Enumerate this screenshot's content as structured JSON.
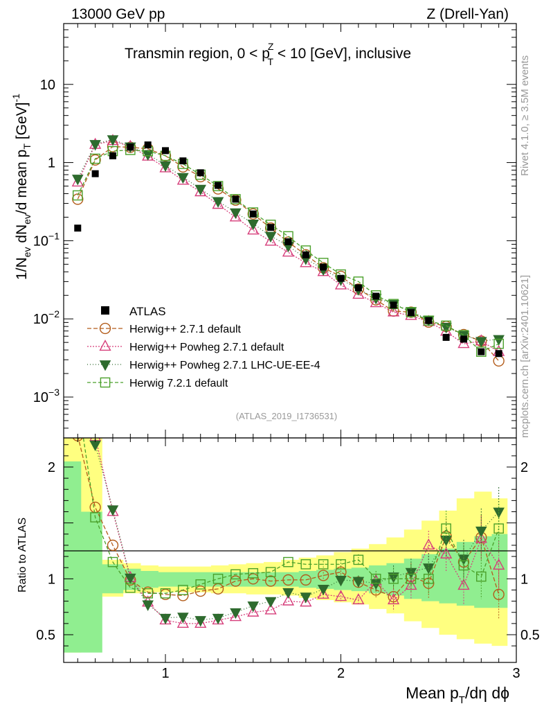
{
  "header": {
    "left": "13000 GeV pp",
    "right": "Z (Drell-Yan)"
  },
  "side_labels": {
    "rivet": "Rivet 4.1.0, ≥ 3.5M events",
    "mcplots": "mcplots.cern.ch [arXiv:2401.10621]"
  },
  "chart_data": {
    "type": "scatter",
    "title": "Transmin region, 0 < p_T^Z < 10 [GeV], inclusive",
    "title_parts": {
      "pre": "Transmin region, 0 < p",
      "sup": "Z",
      "sub": "T",
      "post": " < 10 [GeV], inclusive"
    },
    "analysis_id": "(ATLAS_2019_I1736531)",
    "xlabel": "Mean p_T/dη dϕ",
    "xlabel_parts": {
      "pre": "Mean p",
      "sub": "T",
      "post": "/dη dϕ"
    },
    "ylabel": "1/N_ev dN_ev/d mean p_T [GeV]^-1",
    "ylabel_parts": {
      "a": "1/N",
      "a_sub": "ev",
      "b": " dN",
      "b_sub": "ev",
      "c": "/d mean p",
      "c_sub": "T",
      "d": " [GeV]",
      "d_sup": "-1"
    },
    "ratio_ylabel": "Ratio to ATLAS",
    "xlim": [
      0.42,
      3.0
    ],
    "ylim": [
      0.0003,
      60
    ],
    "yscale": "log",
    "ratio_ylim": [
      0.34,
      2.3
    ],
    "x_ticks": [
      1,
      2,
      3
    ],
    "x_tick_labels": [
      "1",
      "2",
      "3"
    ],
    "y_tick_labels": [
      {
        "value": 10,
        "base": "10",
        "exp": ""
      },
      {
        "value": 1,
        "base": "1",
        "exp": ""
      },
      {
        "value": 0.1,
        "base": "10",
        "exp": "−1"
      },
      {
        "value": 0.01,
        "base": "10",
        "exp": "−2"
      },
      {
        "value": 0.001,
        "base": "10",
        "exp": "−3"
      }
    ],
    "ratio_ticks": [
      0.5,
      1,
      2
    ],
    "ratio_tick_labels": [
      "0.5",
      "1",
      "2"
    ],
    "x": [
      0.5,
      0.6,
      0.7,
      0.8,
      0.9,
      1.0,
      1.1,
      1.2,
      1.3,
      1.4,
      1.5,
      1.6,
      1.7,
      1.8,
      1.9,
      2.0,
      2.1,
      2.2,
      2.3,
      2.4,
      2.5,
      2.6,
      2.7,
      2.8,
      2.9
    ],
    "data": {
      "name": "ATLAS",
      "values": [
        0.145,
        0.72,
        1.22,
        1.58,
        1.68,
        1.42,
        1.05,
        0.74,
        0.51,
        0.34,
        0.22,
        0.148,
        0.097,
        0.066,
        0.046,
        0.033,
        0.025,
        0.0195,
        0.015,
        0.012,
        0.0095,
        0.0058,
        0.0055,
        0.0038,
        0.0036
      ]
    },
    "band_edges": [
      0.42,
      0.52,
      0.64,
      0.76,
      0.86,
      0.96,
      1.06,
      1.16,
      1.26,
      1.36,
      1.46,
      1.56,
      1.66,
      1.76,
      1.86,
      1.96,
      2.06,
      2.16,
      2.26,
      2.36,
      2.46,
      2.56,
      2.66,
      2.76,
      2.86,
      2.95
    ],
    "band_inner": {
      "lo": [
        0.34,
        0.34,
        0.87,
        0.9,
        0.92,
        0.93,
        0.93,
        0.93,
        0.93,
        0.93,
        0.93,
        0.93,
        0.93,
        0.92,
        0.91,
        0.9,
        0.89,
        0.87,
        0.85,
        0.82,
        0.8,
        0.78,
        0.76,
        0.74,
        0.74
      ],
      "hi": [
        2.05,
        1.6,
        1.13,
        1.09,
        1.07,
        1.06,
        1.06,
        1.06,
        1.06,
        1.06,
        1.06,
        1.06,
        1.06,
        1.07,
        1.08,
        1.09,
        1.1,
        1.12,
        1.14,
        1.18,
        1.22,
        1.27,
        1.33,
        1.38,
        1.4
      ]
    },
    "band_outer": {
      "lo": [
        0.34,
        0.67,
        0.84,
        0.87,
        0.88,
        0.88,
        0.88,
        0.88,
        0.87,
        0.87,
        0.86,
        0.86,
        0.85,
        0.83,
        0.81,
        0.79,
        0.77,
        0.73,
        0.69,
        0.62,
        0.56,
        0.5,
        0.46,
        0.42,
        0.4
      ],
      "hi": [
        2.3,
        2.3,
        1.17,
        1.14,
        1.12,
        1.11,
        1.11,
        1.11,
        1.12,
        1.13,
        1.14,
        1.15,
        1.17,
        1.19,
        1.21,
        1.24,
        1.27,
        1.31,
        1.37,
        1.44,
        1.52,
        1.61,
        1.72,
        1.78,
        1.72
      ]
    },
    "series": [
      {
        "name": "Herwig++ 2.7.1 default",
        "color": "#b35c1a",
        "marker": "circle",
        "dash": "6,3",
        "values": [
          0.34,
          1.08,
          1.6,
          1.57,
          1.5,
          1.22,
          0.88,
          0.66,
          0.46,
          0.33,
          0.22,
          0.145,
          0.096,
          0.066,
          0.045,
          0.035,
          0.024,
          0.0175,
          0.0126,
          0.0122,
          0.0091,
          0.008,
          0.0063,
          0.0052,
          0.0029
        ],
        "ratio": [
          2.28,
          1.64,
          1.3,
          0.99,
          0.88,
          0.86,
          0.85,
          0.89,
          0.91,
          0.98,
          1.0,
          0.98,
          0.99,
          0.99,
          1.03,
          1.06,
          0.97,
          0.9,
          0.84,
          1.02,
          0.96,
          1.38,
          1.15,
          1.37,
          0.86
        ],
        "ratio_err": [
          0,
          0,
          0,
          0,
          0,
          0,
          0,
          0,
          0,
          0,
          0,
          0,
          0,
          0,
          0.03,
          0.04,
          0.05,
          0.07,
          0.1,
          0.12,
          0.13,
          0.16,
          0.17,
          0.2,
          0.22
        ]
      },
      {
        "name": "Herwig++ Powheg 2.7.1 default",
        "color": "#d63d7a",
        "marker": "triangle-up",
        "dash": "2,2",
        "values": [
          0.56,
          1.7,
          1.9,
          1.6,
          1.2,
          0.85,
          0.59,
          0.42,
          0.29,
          0.2,
          0.136,
          0.098,
          0.071,
          0.052,
          0.04,
          0.027,
          0.0205,
          0.016,
          0.0122,
          0.011,
          0.0092,
          0.0069,
          0.0048,
          0.0052,
          0.0038
        ],
        "ratio": [
          3.6,
          2.27,
          1.6,
          1.01,
          0.79,
          0.63,
          0.6,
          0.6,
          0.63,
          0.66,
          0.7,
          0.72,
          0.8,
          0.79,
          0.86,
          0.84,
          0.81,
          0.98,
          0.81,
          0.94,
          1.3,
          1.22,
          0.94,
          1.36,
          1.12
        ],
        "ratio_err": [
          0,
          0,
          0,
          0,
          0,
          0,
          0,
          0,
          0,
          0,
          0,
          0,
          0,
          0,
          0.03,
          0.04,
          0.05,
          0.07,
          0.1,
          0.12,
          0.13,
          0.16,
          0.17,
          0.2,
          0.22
        ]
      },
      {
        "name": "Herwig++ Powheg 2.7.1 LHC-UE-EE-4",
        "color": "#2e6b2e",
        "marker": "triangle-down",
        "dash": "1,3",
        "values": [
          0.62,
          1.72,
          1.98,
          1.6,
          1.28,
          0.92,
          0.65,
          0.46,
          0.32,
          0.23,
          0.165,
          0.115,
          0.086,
          0.059,
          0.043,
          0.032,
          0.024,
          0.0185,
          0.0155,
          0.0125,
          0.0097,
          0.0079,
          0.0062,
          0.0052,
          0.0055
        ],
        "ratio": [
          3.8,
          2.2,
          1.62,
          1.01,
          0.77,
          0.65,
          0.66,
          0.63,
          0.65,
          0.7,
          0.76,
          0.8,
          0.88,
          0.84,
          0.91,
          0.99,
          0.98,
          0.96,
          1.02,
          1.06,
          1.1,
          1.35,
          1.18,
          1.43,
          1.6
        ],
        "ratio_err": [
          0,
          0,
          0,
          0,
          0,
          0,
          0,
          0,
          0,
          0,
          0,
          0,
          0,
          0,
          0.03,
          0.04,
          0.05,
          0.07,
          0.1,
          0.12,
          0.13,
          0.16,
          0.17,
          0.2,
          0.22
        ]
      },
      {
        "name": "Herwig 7.2.1 default",
        "color": "#4aa02a",
        "marker": "square",
        "dash": "5,3",
        "values": [
          0.38,
          1.12,
          1.4,
          1.45,
          1.4,
          1.22,
          0.96,
          0.7,
          0.5,
          0.34,
          0.23,
          0.16,
          0.114,
          0.075,
          0.052,
          0.037,
          0.03,
          0.02,
          0.0155,
          0.0122,
          0.0095,
          0.0082,
          0.0062,
          0.0038,
          0.0048
        ],
        "ratio": [
          2.6,
          1.55,
          1.15,
          0.92,
          0.87,
          0.87,
          0.9,
          0.95,
          1.0,
          1.04,
          1.05,
          1.06,
          1.15,
          1.13,
          1.13,
          1.13,
          1.17,
          1.0,
          1.0,
          1.0,
          1.0,
          1.45,
          1.12,
          1.02,
          1.45
        ],
        "ratio_err": [
          0,
          0,
          0,
          0,
          0,
          0,
          0,
          0,
          0,
          0,
          0,
          0,
          0,
          0,
          0.03,
          0.04,
          0.05,
          0.07,
          0.1,
          0.12,
          0.13,
          0.16,
          0.17,
          0.2,
          0.22
        ]
      }
    ]
  }
}
